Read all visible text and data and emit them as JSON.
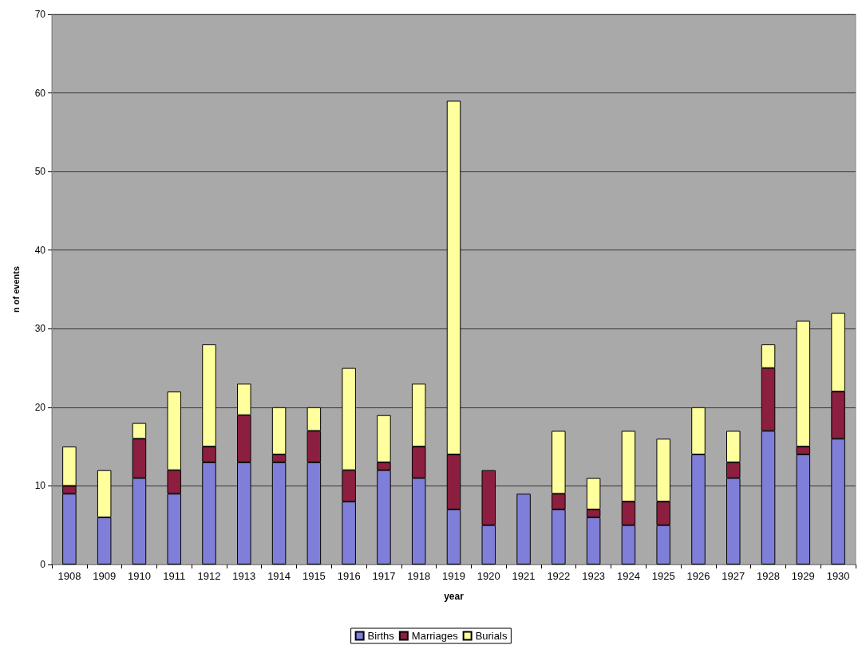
{
  "chart_data": {
    "type": "bar",
    "xlabel": "year",
    "ylabel": "n of events",
    "stacked": true,
    "grid": "y",
    "legend": "bottom",
    "categories": [
      "1908",
      "1909",
      "1910",
      "1911",
      "1912",
      "1913",
      "1914",
      "1915",
      "1916",
      "1917",
      "1918",
      "1919",
      "1920",
      "1921",
      "1922",
      "1923",
      "1924",
      "1925",
      "1926",
      "1927",
      "1928",
      "1929",
      "1930"
    ],
    "series": [
      {
        "name": "Births",
        "color": "#7f7fd9",
        "values": [
          9,
          6,
          11,
          9,
          13,
          13,
          13,
          13,
          8,
          12,
          11,
          7,
          5,
          9,
          7,
          6,
          5,
          5,
          14,
          11,
          17,
          14,
          16
        ]
      },
      {
        "name": "Marriages",
        "color": "#8c1f3f",
        "values": [
          1,
          0,
          5,
          3,
          2,
          6,
          1,
          4,
          4,
          1,
          4,
          7,
          7,
          0,
          2,
          1,
          3,
          3,
          0,
          2,
          8,
          1,
          6
        ]
      },
      {
        "name": "Burials",
        "color": "#ffff9e",
        "values": [
          5,
          6,
          2,
          10,
          13,
          4,
          6,
          3,
          13,
          6,
          8,
          45,
          0,
          0,
          8,
          4,
          9,
          8,
          6,
          4,
          3,
          16,
          10
        ]
      }
    ],
    "ylim": [
      0,
      70
    ],
    "yticks": [
      0,
      10,
      20,
      30,
      40,
      50,
      60,
      70
    ]
  }
}
